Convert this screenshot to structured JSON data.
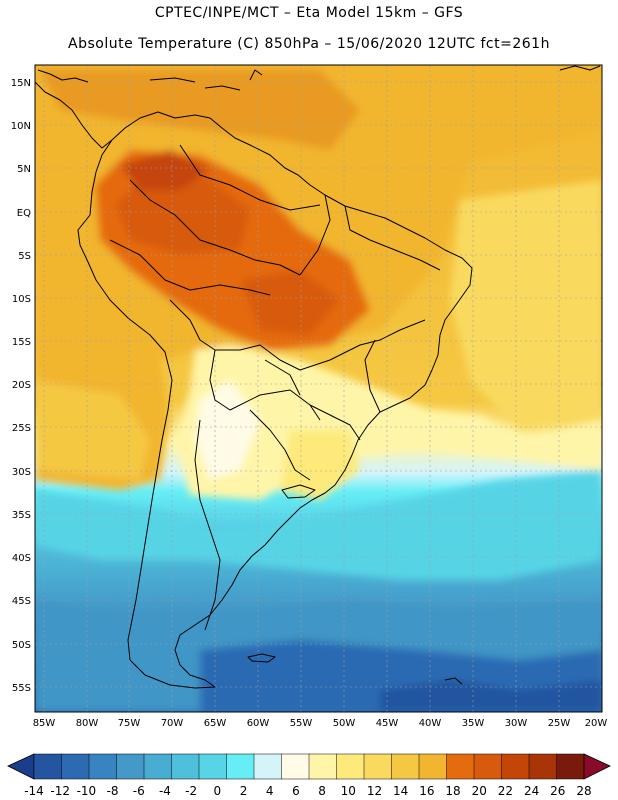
{
  "header": {
    "line1": "CPTEC/INPE/MCT –  Eta Model 15km – GFS",
    "line2": "Absolute Temperature (C) 850hPa – 15/06/2020 12UTC fct=261h"
  },
  "map": {
    "lat_labels": [
      "15N",
      "10N",
      "5N",
      "EQ",
      "5S",
      "10S",
      "15S",
      "20S",
      "25S",
      "30S",
      "35S",
      "40S",
      "45S",
      "50S",
      "55S"
    ],
    "lon_labels": [
      "85W",
      "80W",
      "75W",
      "70W",
      "65W",
      "60W",
      "55W",
      "50W",
      "45W",
      "40W",
      "35W",
      "30W",
      "25W",
      "20W"
    ]
  },
  "colorbar": {
    "labels": [
      "-14",
      "-12",
      "-10",
      "-8",
      "-6",
      "-4",
      "-2",
      "0",
      "2",
      "4",
      "6",
      "8",
      "10",
      "12",
      "14",
      "16",
      "18",
      "20",
      "22",
      "24",
      "26",
      "28"
    ],
    "colors": [
      "#1a3e8c",
      "#2355a0",
      "#2c6bb2",
      "#3784c0",
      "#4499c8",
      "#49acd2",
      "#4fc0dc",
      "#57d4e6",
      "#66eef6",
      "#d4f4fa",
      "#fffbe6",
      "#fff5a8",
      "#fdea7a",
      "#f9da5e",
      "#f5c843",
      "#f2b52f",
      "#e56b0f",
      "#d85a0c",
      "#c44508",
      "#a83407",
      "#7a1a0a",
      "#8a0a2a"
    ]
  }
}
